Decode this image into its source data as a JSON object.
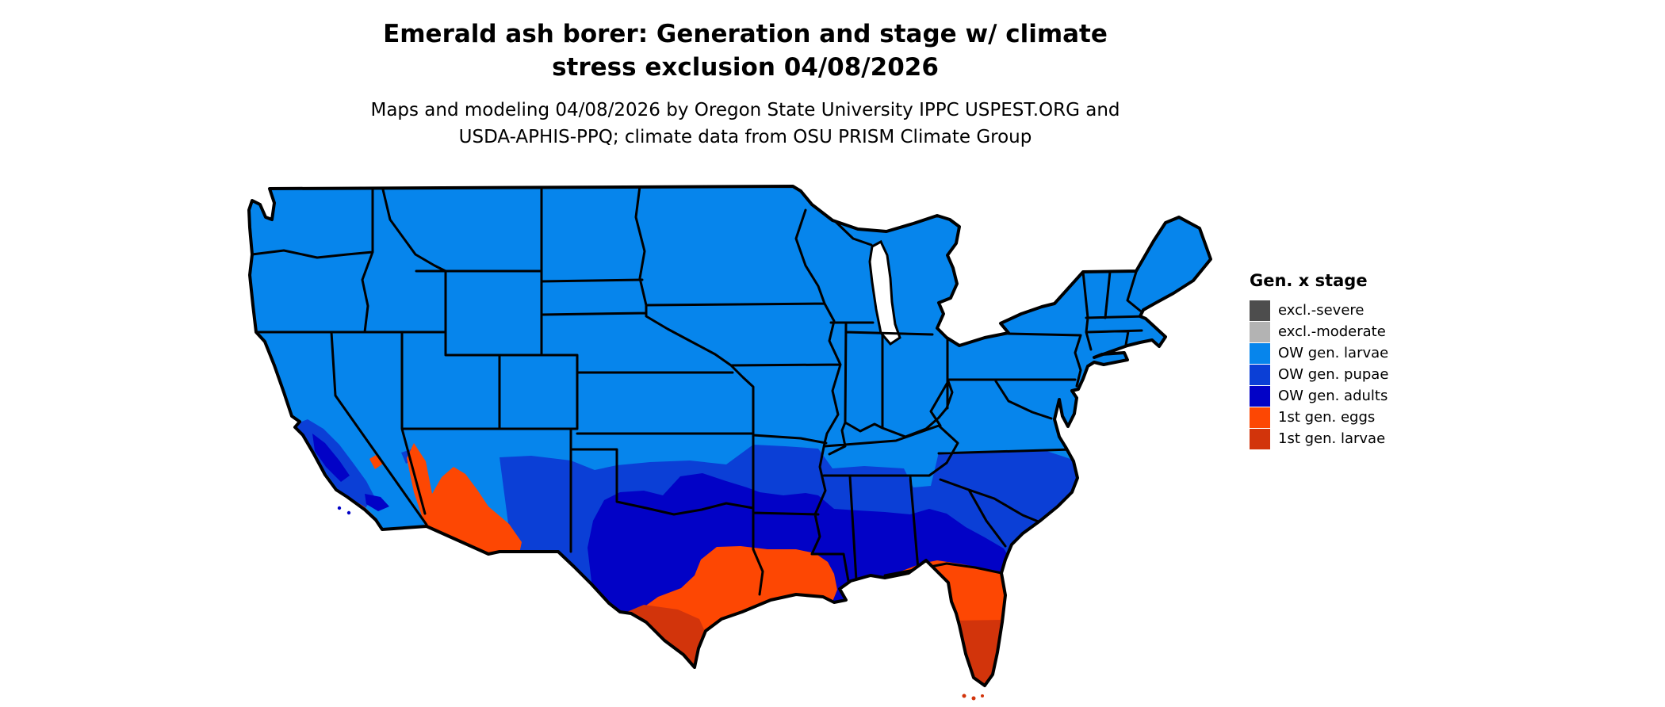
{
  "header": {
    "title": "Emerald ash borer: Generation and stage w/ climate stress exclusion 04/08/2026",
    "subtitle": "Maps and modeling 04/08/2026 by Oregon State University IPPC USPEST.ORG and USDA-APHIS-PPQ; climate data from OSU PRISM Climate Group"
  },
  "legend": {
    "title": "Gen. x stage",
    "items": [
      {
        "label": "excl.-severe",
        "color": "#4d4d4d"
      },
      {
        "label": "excl.-moderate",
        "color": "#b3b3b3"
      },
      {
        "label": "OW gen. larvae",
        "color": "#0685ec"
      },
      {
        "label": "OW gen. pupae",
        "color": "#0b3fd6"
      },
      {
        "label": "OW gen. adults",
        "color": "#0202c6"
      },
      {
        "label": "1st gen. eggs",
        "color": "#fd4703"
      },
      {
        "label": "1st gen. larvae",
        "color": "#d2340b"
      }
    ]
  },
  "map": {
    "region": "Continental United States",
    "border_color": "#000000",
    "background_color": "#ffffff",
    "zones": [
      {
        "name": "OW gen. larvae",
        "color": "#0685ec",
        "coverage": "Most of the northern and central United States"
      },
      {
        "name": "OW gen. pupae",
        "color": "#0b3fd6",
        "coverage": "Southern band: southern NM, Texas panhandle, OK, AR, northern MS/AL/GA, NC and SC, central California"
      },
      {
        "name": "OW gen. adults",
        "color": "#0202c6",
        "coverage": "Central and east Texas, inland Louisiana, southern MS/AL/GA, coastal SC, southern California mountains"
      },
      {
        "name": "1st gen. eggs",
        "color": "#fd4703",
        "coverage": "South Texas gulf coast, coastal Louisiana, northern Florida, southern Arizona, southern California coast"
      },
      {
        "name": "1st gen. larvae",
        "color": "#d2340b",
        "coverage": "Southernmost Texas and southern Florida"
      }
    ]
  }
}
